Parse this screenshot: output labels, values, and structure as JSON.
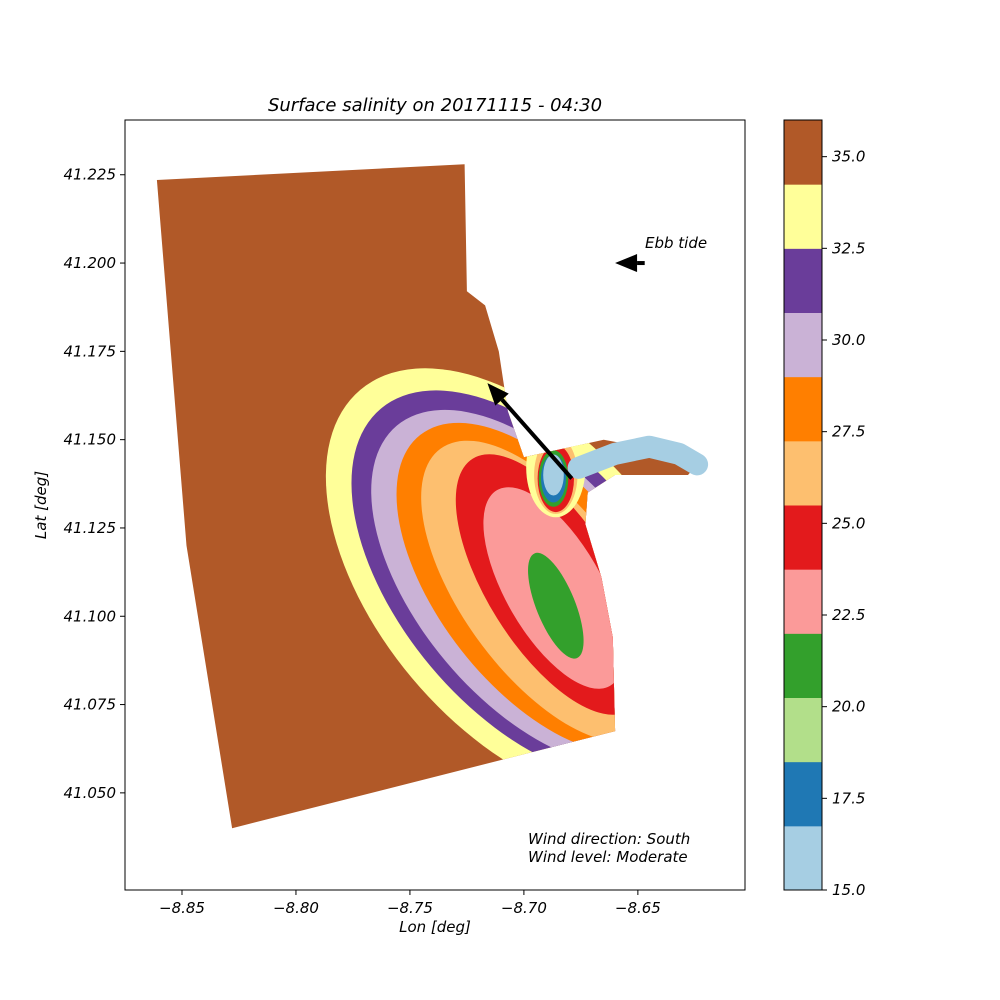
{
  "chart_data": {
    "type": "heatmap",
    "title": "Surface salinity on 20171115 - 04:30",
    "xlabel": "Lon [deg]",
    "ylabel": "Lat [deg]",
    "xlim": [
      -8.875,
      -8.603
    ],
    "ylim": [
      41.0225,
      41.2405
    ],
    "x_ticks": [
      -8.85,
      -8.8,
      -8.75,
      -8.7,
      -8.65
    ],
    "x_tick_labels": [
      "−8.85",
      "−8.80",
      "−8.75",
      "−8.70",
      "−8.65"
    ],
    "y_ticks": [
      41.05,
      41.075,
      41.1,
      41.125,
      41.15,
      41.175,
      41.2,
      41.225
    ],
    "y_tick_labels": [
      "41.050",
      "41.075",
      "41.100",
      "41.125",
      "41.150",
      "41.175",
      "41.200",
      "41.225"
    ],
    "grid": false,
    "colorbar": {
      "range": [
        15.0,
        36.0
      ],
      "boundaries": [
        15.0,
        16.75,
        18.5,
        20.25,
        22.0,
        23.75,
        25.5,
        27.25,
        29.0,
        30.75,
        32.5,
        34.25,
        36.0
      ],
      "colors": [
        "#a6cee3",
        "#1f78b4",
        "#b2df8a",
        "#33a02c",
        "#fb9a99",
        "#e31a1c",
        "#fdbf6f",
        "#ff7f00",
        "#cab2d6",
        "#6a3d9a",
        "#ffff99",
        "#b15928"
      ],
      "ticks": [
        15.0,
        17.5,
        20.0,
        22.5,
        25.0,
        27.5,
        30.0,
        32.5,
        35.0
      ],
      "tick_labels": [
        "15.0",
        "17.5",
        "20.0",
        "22.5",
        "25.0",
        "27.5",
        "30.0",
        "32.5",
        "35.0"
      ]
    },
    "domain_outline": [
      [
        -8.861,
        41.2235
      ],
      [
        -8.726,
        41.228
      ],
      [
        -8.725,
        41.192
      ],
      [
        -8.717,
        41.188
      ],
      [
        -8.711,
        41.175
      ],
      [
        -8.707,
        41.158
      ],
      [
        -8.7,
        41.145
      ],
      [
        -8.665,
        41.15
      ],
      [
        -8.64,
        41.147
      ],
      [
        -8.624,
        41.143
      ],
      [
        -8.628,
        41.14
      ],
      [
        -8.66,
        41.14
      ],
      [
        -8.672,
        41.135
      ],
      [
        -8.673,
        41.126
      ],
      [
        -8.666,
        41.111
      ],
      [
        -8.661,
        41.094
      ],
      [
        -8.66,
        41.0675
      ],
      [
        -8.828,
        41.04
      ],
      [
        -8.848,
        41.12
      ],
      [
        -8.861,
        41.2235
      ]
    ],
    "salinity_zones": [
      {
        "salinity": 33.5,
        "center": [
          -8.7,
          41.109
        ],
        "rx": 0.064,
        "ry": 0.072,
        "rotation": -40
      },
      {
        "salinity": 31.5,
        "center": [
          -8.698,
          41.109
        ],
        "rx": 0.056,
        "ry": 0.065,
        "rotation": -40
      },
      {
        "salinity": 30.0,
        "center": [
          -8.696,
          41.108
        ],
        "rx": 0.05,
        "ry": 0.06,
        "rotation": -40
      },
      {
        "salinity": 28.0,
        "center": [
          -8.693,
          41.108
        ],
        "rx": 0.044,
        "ry": 0.055,
        "rotation": -38
      },
      {
        "salinity": 26.5,
        "center": [
          -8.691,
          41.107
        ],
        "rx": 0.036,
        "ry": 0.05,
        "rotation": -36
      },
      {
        "salinity": 24.5,
        "center": [
          -8.688,
          41.109
        ],
        "rx": 0.028,
        "ry": 0.042,
        "rotation": -32
      },
      {
        "salinity": 23.0,
        "center": [
          -8.687,
          41.108
        ],
        "rx": 0.021,
        "ry": 0.032,
        "rotation": -30
      },
      {
        "salinity": 21.0,
        "center": [
          -8.686,
          41.103
        ],
        "rx": 0.0085,
        "ry": 0.016,
        "rotation": -22
      },
      {
        "salinity": 33.5,
        "center": [
          -8.686,
          41.142
        ],
        "rx": 0.013,
        "ry": 0.014,
        "rotation": 0
      },
      {
        "salinity": 26.5,
        "center": [
          -8.686,
          41.14
        ],
        "rx": 0.0095,
        "ry": 0.011,
        "rotation": 0
      },
      {
        "salinity": 24.5,
        "center": [
          -8.686,
          41.139
        ],
        "rx": 0.008,
        "ry": 0.0095,
        "rotation": 0
      },
      {
        "salinity": 21.0,
        "center": [
          -8.687,
          41.139
        ],
        "rx": 0.0065,
        "ry": 0.008,
        "rotation": 0
      },
      {
        "salinity": 18.0,
        "center": [
          -8.687,
          41.139
        ],
        "rx": 0.0055,
        "ry": 0.0068,
        "rotation": 0
      },
      {
        "salinity": 16.0,
        "center": [
          -8.687,
          41.14
        ],
        "rx": 0.0045,
        "ry": 0.0058,
        "rotation": 0
      }
    ],
    "river_channel": {
      "salinity": 16.0,
      "path": [
        [
          -8.676,
          41.142
        ],
        [
          -8.66,
          41.146
        ],
        [
          -8.645,
          41.148
        ],
        [
          -8.632,
          41.146
        ],
        [
          -8.624,
          41.143
        ]
      ]
    },
    "arrows": [
      {
        "name": "flow-arrow",
        "from": [
          -8.679,
          41.139
        ],
        "to": [
          -8.716,
          41.166
        ]
      },
      {
        "name": "ebb-tide-arrow",
        "from": [
          -8.647,
          41.2
        ],
        "to": [
          -8.66,
          41.2
        ]
      }
    ],
    "annotations": {
      "ebb_tide": "Ebb tide",
      "wind_direction": "Wind direction: South",
      "wind_level": "Wind level: Moderate"
    }
  }
}
